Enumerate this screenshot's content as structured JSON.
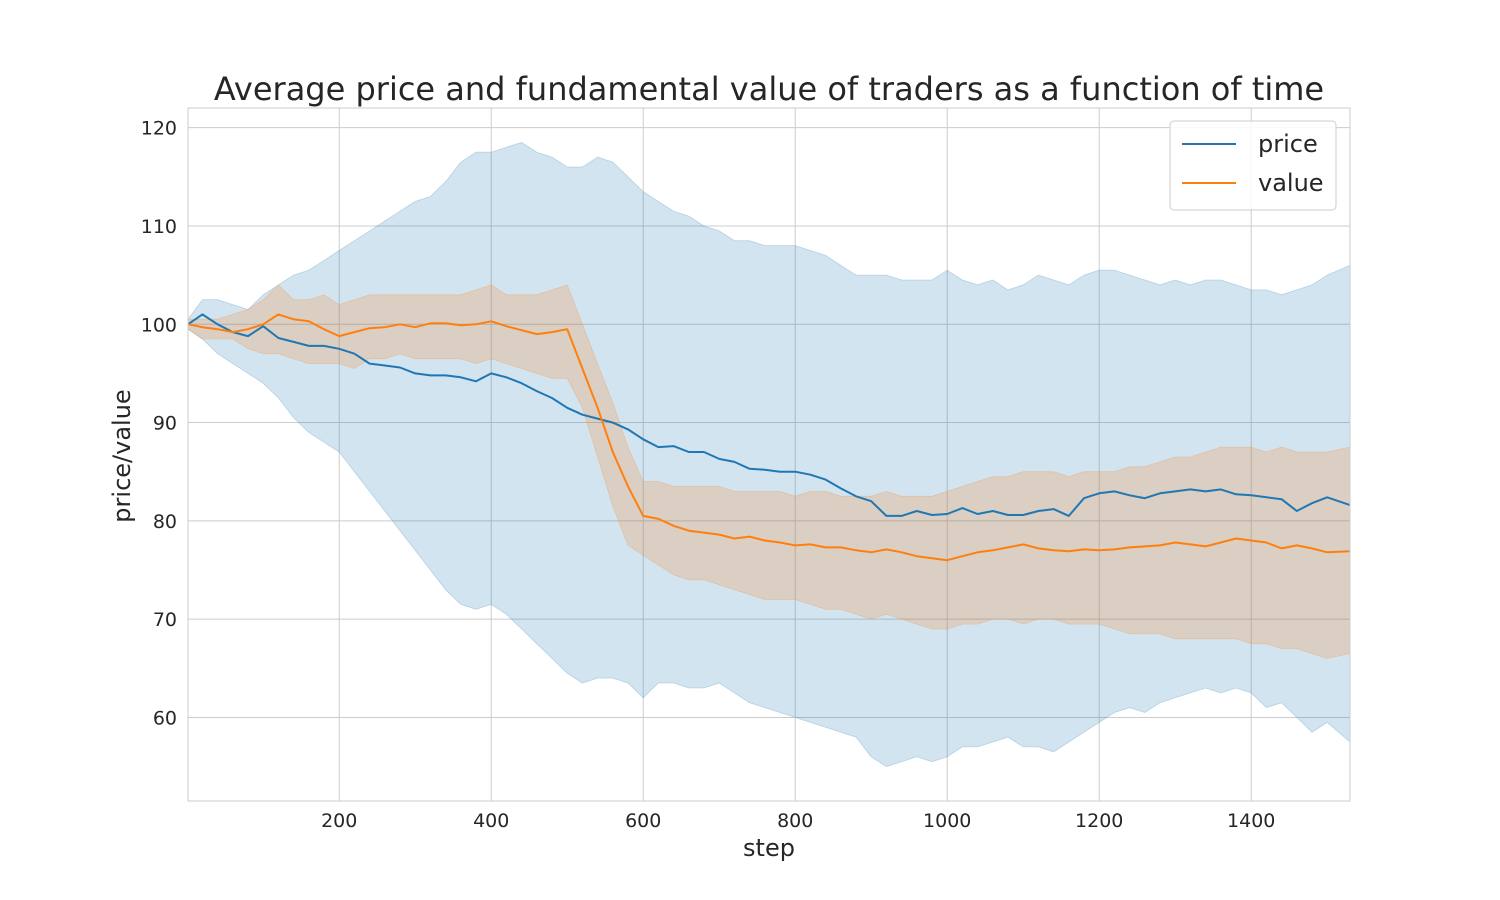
{
  "chart_data": {
    "type": "line",
    "title": "Average price and fundamental value of traders as a function of time",
    "xlabel": "step",
    "ylabel": "price/value",
    "xlim": [
      1,
      1530
    ],
    "ylim": [
      51.5,
      122
    ],
    "xticks": [
      200,
      400,
      600,
      800,
      1000,
      1200,
      1400
    ],
    "yticks": [
      60,
      70,
      80,
      90,
      100,
      110,
      120
    ],
    "grid": true,
    "legend_position": "top-right",
    "x": [
      1,
      20,
      40,
      60,
      80,
      100,
      120,
      140,
      160,
      180,
      200,
      220,
      240,
      260,
      280,
      300,
      320,
      340,
      360,
      380,
      400,
      420,
      440,
      460,
      480,
      500,
      520,
      540,
      560,
      580,
      600,
      620,
      640,
      660,
      680,
      700,
      720,
      740,
      760,
      780,
      800,
      820,
      840,
      860,
      880,
      900,
      920,
      940,
      960,
      980,
      1000,
      1020,
      1040,
      1060,
      1080,
      1100,
      1120,
      1140,
      1160,
      1180,
      1200,
      1220,
      1240,
      1260,
      1280,
      1300,
      1320,
      1340,
      1360,
      1380,
      1400,
      1420,
      1440,
      1460,
      1480,
      1500,
      1530
    ],
    "series": [
      {
        "name": "price",
        "color": "#1f77b4",
        "band_color": "#1f77b4",
        "values": [
          100,
          101,
          100,
          99.2,
          98.8,
          99.8,
          98.6,
          98.2,
          97.8,
          97.8,
          97.5,
          97,
          96,
          95.8,
          95.6,
          95,
          94.8,
          94.8,
          94.6,
          94.2,
          95,
          94.6,
          94,
          93.2,
          92.5,
          91.5,
          90.8,
          90.4,
          90,
          89.3,
          88.3,
          87.5,
          87.6,
          87,
          87,
          86.3,
          86,
          85.3,
          85.2,
          85,
          85,
          84.7,
          84.2,
          83.3,
          82.5,
          82,
          80.5,
          80.5,
          81,
          80.6,
          80.7,
          81.3,
          80.7,
          81,
          80.6,
          80.6,
          81,
          81.2,
          80.5,
          82.3,
          82.8,
          83,
          82.6,
          82.3,
          82.8,
          83,
          83.2,
          83,
          83.2,
          82.7,
          82.6,
          82.4,
          82.2,
          81,
          81.8,
          82.4,
          81.6
        ],
        "lower": [
          99.5,
          98.5,
          97,
          96,
          95,
          94,
          92.5,
          90.5,
          89,
          88,
          87,
          85,
          83,
          81,
          79,
          77,
          75,
          73,
          71.5,
          71,
          71.5,
          70.5,
          69,
          67.5,
          66,
          64.5,
          63.5,
          64,
          64,
          63.5,
          62,
          63.5,
          63.5,
          63,
          63,
          63.5,
          62.5,
          61.5,
          61,
          60.5,
          60,
          59.5,
          59,
          58.5,
          58,
          56,
          55,
          55.5,
          56,
          55.5,
          56,
          57,
          57,
          57.5,
          58,
          57,
          57,
          56.5,
          57.5,
          58.5,
          59.5,
          60.5,
          61,
          60.5,
          61.5,
          62,
          62.5,
          63,
          62.5,
          63,
          62.5,
          61,
          61.5,
          60,
          58.5,
          59.5,
          57.5
        ],
        "upper": [
          100.5,
          102.5,
          102.5,
          102,
          101.5,
          103,
          104,
          105,
          105.5,
          106.5,
          107.5,
          108.5,
          109.5,
          110.5,
          111.5,
          112.5,
          113,
          114.5,
          116.5,
          117.5,
          117.5,
          118,
          118.5,
          117.5,
          117,
          116,
          116,
          117,
          116.5,
          115,
          113.5,
          112.5,
          111.5,
          111,
          110,
          109.5,
          108.5,
          108.5,
          108,
          108,
          108,
          107.5,
          107,
          106,
          105,
          105,
          105,
          104.5,
          104.5,
          104.5,
          105.5,
          104.5,
          104,
          104.5,
          103.5,
          104,
          105,
          104.5,
          104,
          105,
          105.5,
          105.5,
          105,
          104.5,
          104,
          104.5,
          104,
          104.5,
          104.5,
          104,
          103.5,
          103.5,
          103,
          103.5,
          104,
          105,
          106
        ]
      },
      {
        "name": "value",
        "color": "#ff7f0e",
        "band_color": "#ff7f0e",
        "values": [
          100,
          99.7,
          99.5,
          99.2,
          99.5,
          100,
          101,
          100.5,
          100.3,
          99.5,
          98.8,
          99.2,
          99.6,
          99.7,
          100,
          99.7,
          100.1,
          100.1,
          99.9,
          100,
          100.3,
          99.8,
          99.4,
          99,
          99.2,
          99.5,
          95.5,
          91.5,
          87,
          83.5,
          80.5,
          80.2,
          79.5,
          79,
          78.8,
          78.6,
          78.2,
          78.4,
          78,
          77.8,
          77.5,
          77.6,
          77.3,
          77.3,
          77,
          76.8,
          77.1,
          76.8,
          76.4,
          76.2,
          76,
          76.4,
          76.8,
          77,
          77.3,
          77.6,
          77.2,
          77,
          76.9,
          77.1,
          77,
          77.1,
          77.3,
          77.4,
          77.5,
          77.8,
          77.6,
          77.4,
          77.8,
          78.2,
          78,
          77.8,
          77.2,
          77.5,
          77.2,
          76.8,
          76.9
        ],
        "lower": [
          99.5,
          98.5,
          98.5,
          98.5,
          97.5,
          97,
          97,
          96.5,
          96,
          96,
          96,
          95.5,
          96.5,
          96.5,
          97,
          96.5,
          96.5,
          96.5,
          96.5,
          96,
          96.5,
          96,
          95.5,
          95,
          94.5,
          94.5,
          91.5,
          86.5,
          81.5,
          77.5,
          76.5,
          75.5,
          74.5,
          74,
          74,
          73.5,
          73,
          72.5,
          72,
          72,
          72,
          71.5,
          71,
          71,
          70.5,
          70,
          70.5,
          70,
          69.5,
          69,
          69,
          69.5,
          69.5,
          70,
          70,
          69.5,
          70,
          70,
          69.5,
          69.5,
          69.5,
          69,
          68.5,
          68.5,
          68.5,
          68,
          68,
          68,
          68,
          68,
          67.5,
          67.5,
          67,
          67,
          66.5,
          66,
          66.5
        ],
        "upper": [
          100.5,
          100.5,
          100.5,
          101,
          101.5,
          102.5,
          104,
          102.5,
          102.5,
          103,
          102,
          102.5,
          103,
          103,
          103,
          103,
          103,
          103,
          103,
          103.5,
          104,
          103,
          103,
          103,
          103.5,
          104,
          100,
          96,
          92,
          87.5,
          84,
          84,
          83.5,
          83.5,
          83.5,
          83.5,
          83,
          83,
          83,
          83,
          82.5,
          83,
          83,
          82.5,
          82.5,
          82.5,
          83,
          82.5,
          82.5,
          82.5,
          83,
          83.5,
          84,
          84.5,
          84.5,
          85,
          85,
          85,
          84.5,
          85,
          85,
          85,
          85.5,
          85.5,
          86,
          86.5,
          86.5,
          87,
          87.5,
          87.5,
          87.5,
          87,
          87.5,
          87,
          87,
          87,
          87.5
        ]
      }
    ]
  }
}
